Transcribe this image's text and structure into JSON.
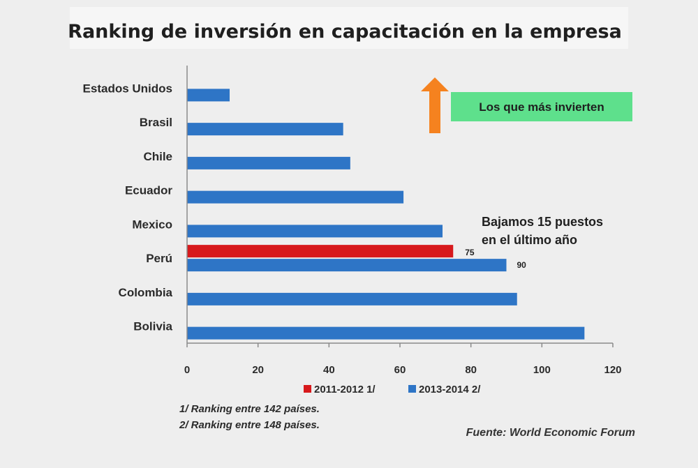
{
  "chart_data": {
    "type": "bar",
    "orientation": "horizontal",
    "title": "Ranking de inversión en capacitación  en la empresa",
    "categories": [
      "Estados Unidos",
      "Brasil",
      "Chile",
      "Ecuador",
      "Mexico",
      "Perú",
      "Colombia",
      "Bolivia"
    ],
    "series": [
      {
        "name": "2011-2012 1/",
        "color": "#d7191c",
        "values": [
          null,
          null,
          null,
          null,
          null,
          75,
          null,
          null
        ]
      },
      {
        "name": "2013-2014 2/",
        "color": "#2e75c6",
        "values": [
          12,
          44,
          46,
          61,
          72,
          90,
          93,
          112
        ]
      }
    ],
    "data_labels": [
      "75",
      "90"
    ],
    "xlim": [
      0,
      120
    ],
    "xticks": [
      "0",
      "20",
      "40",
      "60",
      "80",
      "100",
      "120"
    ],
    "grid": false,
    "legend_position": "bottom"
  },
  "annotations": {
    "callout": "Los que más invierten",
    "callout_bg": "#5ee08c",
    "arrow_color": "#f5821f",
    "note_line1": "Bajamos 15  puestos",
    "note_line2": "en el último año"
  },
  "footnotes": {
    "line1": "1/ Ranking entre 142 países.",
    "line2": "2/ Ranking entre 148 países.",
    "source": "Fuente: World Economic Forum"
  }
}
